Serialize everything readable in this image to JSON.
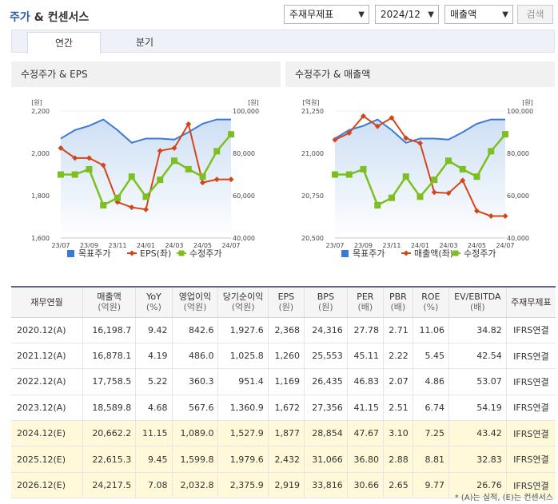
{
  "header": {
    "title_a": "주가",
    "title_b": "& 컨센서스",
    "select_basis": "주재무제표",
    "select_period": "2024/12",
    "select_item": "매출액",
    "search_label": "검색"
  },
  "tabs": [
    "연간",
    "분기"
  ],
  "colors": {
    "target": "#3b79d8",
    "left_series": "#d2461a",
    "right_series": "#7cbf1e",
    "est_row": "#fff8d9"
  },
  "chart_data": [
    {
      "type": "line",
      "title": "수정주가 & EPS",
      "categories": [
        "23/07",
        "23/08",
        "23/09",
        "23/10",
        "23/11",
        "23/12",
        "24/01",
        "24/02",
        "24/03",
        "24/04",
        "24/05",
        "24/06",
        "24/07"
      ],
      "x_tick_labels": [
        "23/07",
        "23/09",
        "23/11",
        "24/01",
        "24/03",
        "24/05",
        "24/07"
      ],
      "left_axis": {
        "unit": "[원]",
        "min": 1600,
        "max": 2200,
        "ticks": [
          "2,200",
          "2,000",
          "1,800",
          "1,600"
        ]
      },
      "right_axis": {
        "unit": "[원]",
        "min": 40000,
        "max": 100000,
        "ticks": [
          "100,000",
          "80,000",
          "60,000",
          "40,000"
        ]
      },
      "series": [
        {
          "name": "목표주가",
          "axis": "right",
          "style": "area",
          "values": [
            87000,
            91000,
            93000,
            96000,
            91000,
            85000,
            87000,
            87000,
            86500,
            90000,
            94000,
            96000,
            96000
          ]
        },
        {
          "name": "EPS(좌)",
          "axis": "left",
          "style": "line-diamond",
          "values": [
            2025,
            1978,
            1978,
            1944,
            1770,
            1745,
            1735,
            2012,
            2025,
            2138,
            1862,
            1877,
            1877
          ]
        },
        {
          "name": "수정주가",
          "axis": "right",
          "style": "line-square",
          "values": [
            70000,
            70000,
            72500,
            55500,
            59000,
            69000,
            59500,
            67500,
            76500,
            72500,
            69000,
            81000,
            89000
          ]
        }
      ],
      "legend": [
        "목표주가",
        "EPS(좌)",
        "수정주가"
      ]
    },
    {
      "type": "line",
      "title": "수정주가 & 매출액",
      "categories": [
        "23/07",
        "23/08",
        "23/09",
        "23/10",
        "23/11",
        "23/12",
        "24/01",
        "24/02",
        "24/03",
        "24/04",
        "24/05",
        "24/06",
        "24/07"
      ],
      "x_tick_labels": [
        "23/07",
        "23/09",
        "23/11",
        "24/01",
        "24/03",
        "24/05",
        "24/07"
      ],
      "left_axis": {
        "unit": "[억원]",
        "min": 20500,
        "max": 21250,
        "ticks": [
          "21,250",
          "21,000",
          "20,750",
          "20,500"
        ]
      },
      "right_axis": {
        "unit": "[원]",
        "min": 40000,
        "max": 100000,
        "ticks": [
          "100,000",
          "80,000",
          "60,000",
          "40,000"
        ]
      },
      "series": [
        {
          "name": "목표주가",
          "axis": "right",
          "style": "area",
          "values": [
            87000,
            91000,
            93000,
            96000,
            91000,
            85000,
            87000,
            87000,
            86500,
            90000,
            94000,
            96000,
            96000
          ]
        },
        {
          "name": "매출액(좌)",
          "axis": "left",
          "style": "line-diamond",
          "values": [
            21080,
            21120,
            21220,
            21160,
            21210,
            21090,
            21060,
            20770,
            20765,
            20840,
            20660,
            20630,
            20630
          ]
        },
        {
          "name": "수정주가",
          "axis": "right",
          "style": "line-square",
          "values": [
            70000,
            70000,
            72500,
            55500,
            59000,
            69000,
            59500,
            67500,
            76500,
            72500,
            69000,
            81000,
            89000
          ]
        }
      ],
      "legend": [
        "목표주가",
        "매출액(좌)",
        "수정주가"
      ]
    }
  ],
  "table": {
    "headers": [
      [
        "재무연월",
        ""
      ],
      [
        "매출액",
        "(억원)"
      ],
      [
        "YoY",
        "(%)"
      ],
      [
        "영업이익",
        "(억원)"
      ],
      [
        "당기순이익",
        "(억원)"
      ],
      [
        "EPS",
        "(원)"
      ],
      [
        "BPS",
        "(원)"
      ],
      [
        "PER",
        "(배)"
      ],
      [
        "PBR",
        "(배)"
      ],
      [
        "ROE",
        "(%)"
      ],
      [
        "EV/EBITDA",
        "(배)"
      ],
      [
        "주재무제표",
        ""
      ]
    ],
    "rows": [
      {
        "est": false,
        "cells": [
          "2020.12(A)",
          "16,198.7",
          "9.42",
          "842.6",
          "1,927.6",
          "2,368",
          "24,316",
          "27.78",
          "2.71",
          "11.06",
          "34.82",
          "IFRS연결"
        ]
      },
      {
        "est": false,
        "cells": [
          "2021.12(A)",
          "16,878.1",
          "4.19",
          "486.0",
          "1,025.8",
          "1,260",
          "25,553",
          "45.11",
          "2.22",
          "5.45",
          "42.54",
          "IFRS연결"
        ]
      },
      {
        "est": false,
        "cells": [
          "2022.12(A)",
          "17,758.5",
          "5.22",
          "360.3",
          "951.4",
          "1,169",
          "26,435",
          "46.83",
          "2.07",
          "4.86",
          "53.07",
          "IFRS연결"
        ]
      },
      {
        "est": false,
        "cells": [
          "2023.12(A)",
          "18,589.8",
          "4.68",
          "567.6",
          "1,360.9",
          "1,672",
          "27,356",
          "41.15",
          "2.51",
          "6.74",
          "54.19",
          "IFRS연결"
        ]
      },
      {
        "est": true,
        "cells": [
          "2024.12(E)",
          "20,662.2",
          "11.15",
          "1,089.0",
          "1,527.9",
          "1,877",
          "28,854",
          "47.67",
          "3.10",
          "7.25",
          "43.42",
          "IFRS연결"
        ]
      },
      {
        "est": true,
        "cells": [
          "2025.12(E)",
          "22,615.3",
          "9.45",
          "1,599.8",
          "1,979.6",
          "2,432",
          "31,066",
          "36.80",
          "2.88",
          "8.81",
          "32.83",
          "IFRS연결"
        ]
      },
      {
        "est": true,
        "cells": [
          "2026.12(E)",
          "24,217.5",
          "7.08",
          "2,032.8",
          "2,375.9",
          "2,919",
          "33,816",
          "30.66",
          "2.65",
          "9.77",
          "26.76",
          "IFRS연결"
        ]
      }
    ]
  },
  "footnote": "* (A)는 실적, (E)는 컨센서스"
}
